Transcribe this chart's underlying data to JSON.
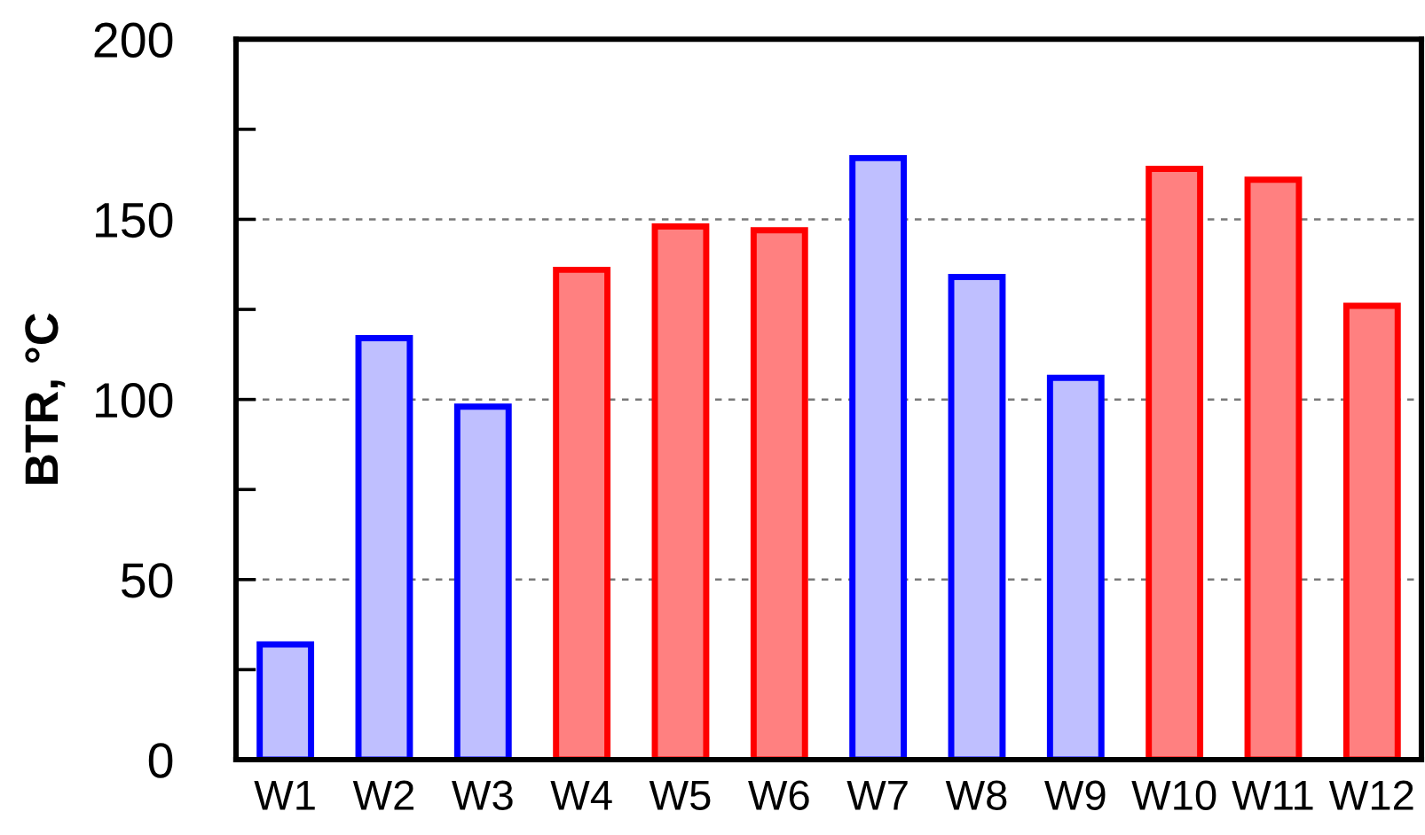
{
  "chart_data": {
    "type": "bar",
    "ylabel": "BTR, °C",
    "categories": [
      "W1",
      "W2",
      "W3",
      "W4",
      "W5",
      "W6",
      "W7",
      "W8",
      "W9",
      "W10",
      "W11",
      "W12"
    ],
    "values": [
      32,
      117,
      98,
      136,
      148,
      147,
      167,
      134,
      106,
      164,
      161,
      126
    ],
    "colors": [
      "#bfbfff",
      "#bfbfff",
      "#bfbfff",
      "#ff8080",
      "#ff8080",
      "#ff8080",
      "#bfbfff",
      "#bfbfff",
      "#bfbfff",
      "#ff8080",
      "#ff8080",
      "#ff8080"
    ],
    "ylim": [
      0,
      200
    ],
    "yticks": [
      0,
      {
        "value": 25,
        "label": null
      },
      50,
      {
        "value": 75,
        "label": null
      },
      100,
      {
        "value": 125,
        "label": null
      },
      150,
      {
        "value": 175,
        "label": null
      },
      200
    ],
    "grid": "y"
  }
}
